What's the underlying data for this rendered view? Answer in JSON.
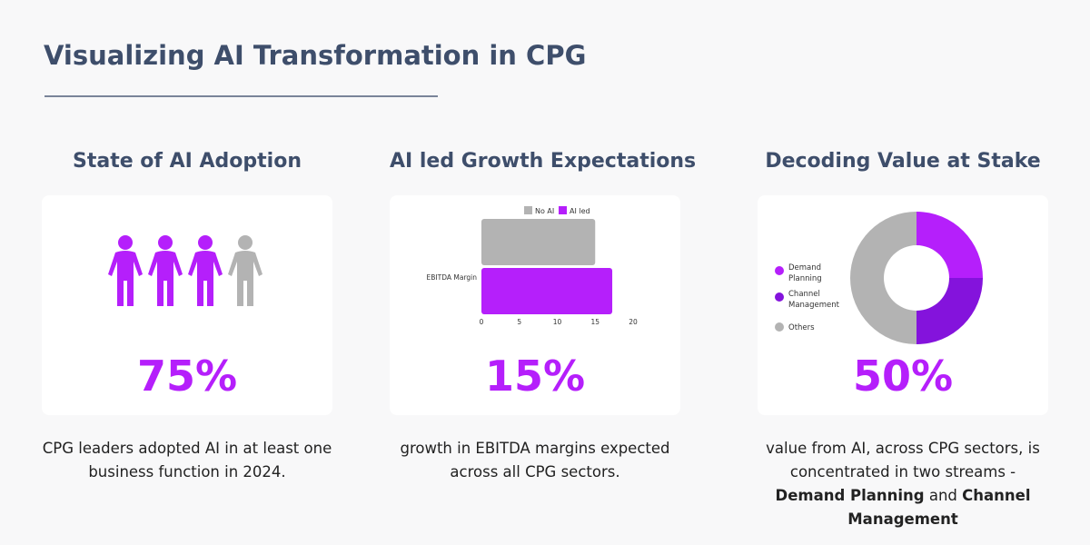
{
  "title": "Visualizing AI Transformation in CPG",
  "colors": {
    "accent": "#b51ffb",
    "secondary": "#8413dc",
    "neutral": "#b3b3b3",
    "heading": "#3e4e6b"
  },
  "adoption": {
    "heading": "State of AI Adoption",
    "stat": "75%",
    "description": "CPG leaders adopted AI in at least one business function in 2024.",
    "people_total": 4,
    "people_highlighted": 3,
    "icon": "person-icon"
  },
  "growth": {
    "heading": "AI led Growth Expectations",
    "stat": "15%",
    "description": "growth in EBITDA margins expected across all CPG sectors."
  },
  "value": {
    "heading": "Decoding Value at Stake",
    "stat": "50%",
    "description_pre": "value from AI, across CPG sectors, is concentrated in two streams - ",
    "bold1": "Demand Planning",
    "and": " and ",
    "bold2": "Channel Management"
  },
  "chart_data": [
    {
      "type": "bar",
      "orientation": "horizontal",
      "categories": [
        "EBITDA Margin"
      ],
      "series": [
        {
          "name": "No AI",
          "values": [
            15
          ],
          "color": "#b3b3b3"
        },
        {
          "name": "AI led",
          "values": [
            17.25
          ],
          "color": "#b51ffb"
        }
      ],
      "xlim": [
        0,
        20
      ],
      "xticks": [
        "0",
        "5",
        "10",
        "15",
        "20"
      ],
      "legend": "top",
      "grid": false
    },
    {
      "type": "pie",
      "donut": true,
      "labels": [
        "Demand Planning",
        "Channel Management",
        "Others"
      ],
      "values": [
        25,
        25,
        50
      ],
      "colors": [
        "#b51ffb",
        "#8413dc",
        "#b3b3b3"
      ],
      "legend": "left"
    }
  ]
}
